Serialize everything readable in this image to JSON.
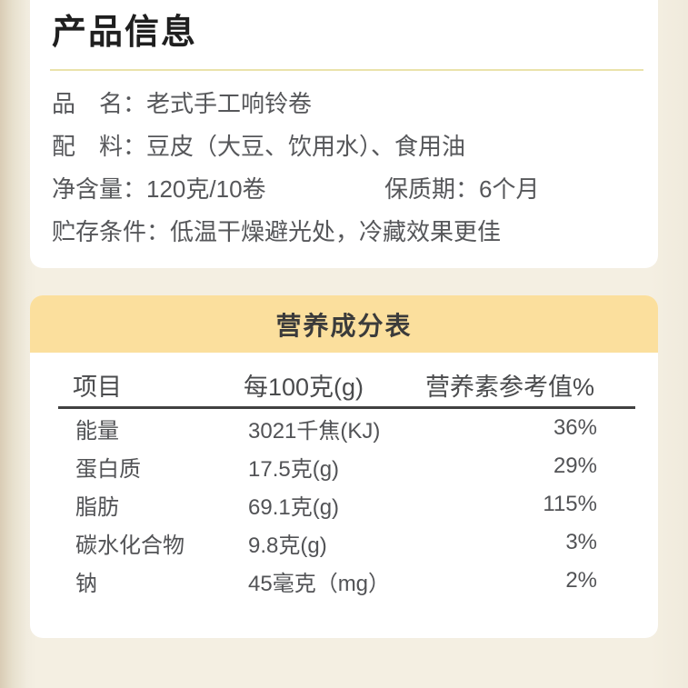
{
  "page": {
    "title": "产品信息"
  },
  "product_info": {
    "name_label": "品　名：",
    "name_value": "老式手工响铃卷",
    "ingredients_label": "配　料：",
    "ingredients_value": "豆皮（大豆、饮用水）、食用油",
    "net_content_label": "净含量：",
    "net_content_value": "120克/10卷",
    "shelf_life_label": "保质期：",
    "shelf_life_value": "6个月",
    "storage_label": "贮存条件：",
    "storage_value": "低温干燥避光处，冷藏效果更佳"
  },
  "nutrition": {
    "title": "营养成分表",
    "columns": [
      "项目",
      "每100克(g)",
      "营养素参考值%"
    ],
    "rows": [
      {
        "item": "能量",
        "per100g": "3021千焦(KJ)",
        "nrv": "36%"
      },
      {
        "item": "蛋白质",
        "per100g": "17.5克(g)",
        "nrv": "29%"
      },
      {
        "item": "脂肪",
        "per100g": "69.1克(g)",
        "nrv": "115%"
      },
      {
        "item": "碳水化合物",
        "per100g": "9.8克(g)",
        "nrv": "3%"
      },
      {
        "item": "钠",
        "per100g": "45毫克（mg）",
        "nrv": "2%"
      }
    ]
  },
  "colors": {
    "background_cream": "#f4efe2",
    "background_edge_tan": "#d9ccb5",
    "card_white": "#ffffff",
    "nutrition_band_yellow": "#fbdf9d",
    "title_underline_yellow": "#eae3ab",
    "title_text": "#1f1f1f",
    "body_text_gray": "#56575a",
    "table_text_gray": "#525356",
    "divider_dark": "#414141"
  }
}
